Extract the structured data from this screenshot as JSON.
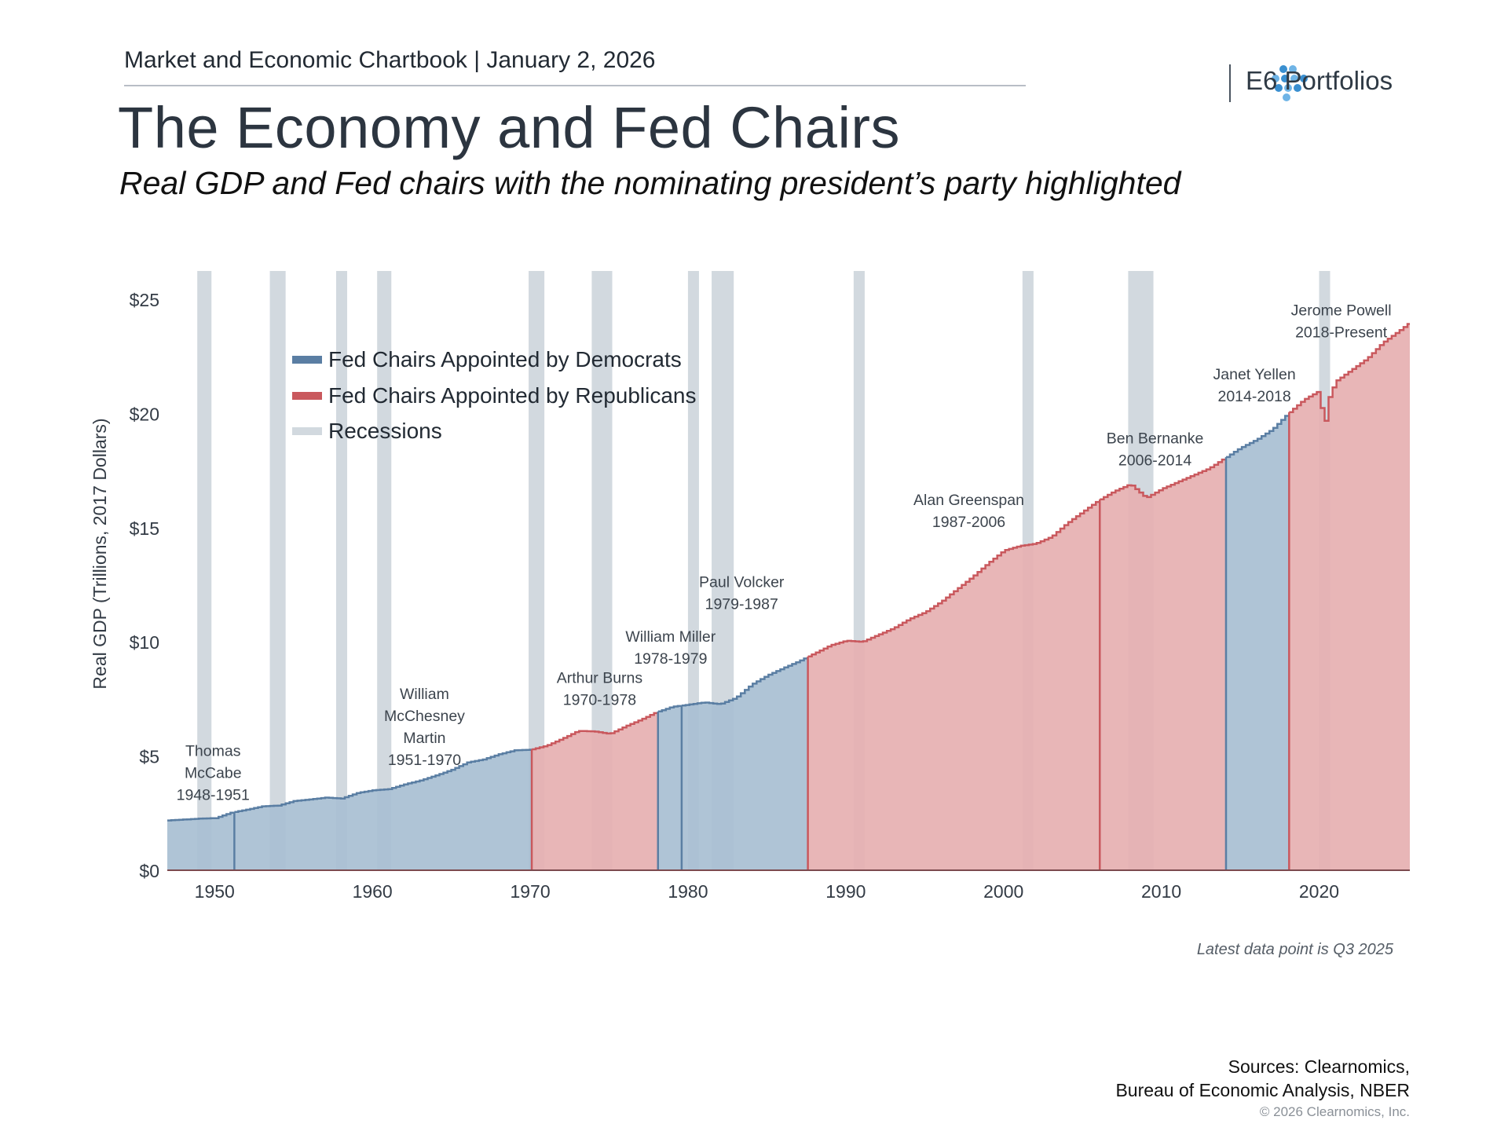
{
  "header": {
    "chartbook": "Market and Economic Chartbook | January 2, 2026",
    "brand": "E6 Portfolios",
    "title": "The Economy and Fed Chairs",
    "subtitle": "Real GDP and Fed chairs with the nominating president’s party highlighted"
  },
  "footer": {
    "note": "Latest data point is Q3 2025",
    "sources_line1": "Sources: Clearnomics,",
    "sources_line2": "Bureau of Economic Analysis, NBER",
    "copyright": "© 2026 Clearnomics, Inc."
  },
  "colors": {
    "democrat_fill": "#a8bfd3",
    "democrat_line": "#5a7ea3",
    "republican_fill": "#e6b0b1",
    "republican_line": "#c9585d",
    "recession": "#d2d9df",
    "axis_text": "#333b45"
  },
  "chart_data": {
    "type": "area",
    "ylabel": "Real GDP (Trillions, 2017 Dollars)",
    "ylim": [
      0,
      26
    ],
    "xlim": [
      1947,
      2025.75
    ],
    "y_ticks": [
      {
        "v": 0,
        "label": "$0"
      },
      {
        "v": 5,
        "label": "$5"
      },
      {
        "v": 10,
        "label": "$10"
      },
      {
        "v": 15,
        "label": "$15"
      },
      {
        "v": 20,
        "label": "$20"
      },
      {
        "v": 25,
        "label": "$25"
      }
    ],
    "x_ticks": [
      {
        "v": 1950,
        "label": "1950"
      },
      {
        "v": 1960,
        "label": "1960"
      },
      {
        "v": 1970,
        "label": "1970"
      },
      {
        "v": 1980,
        "label": "1980"
      },
      {
        "v": 1990,
        "label": "1990"
      },
      {
        "v": 2000,
        "label": "2000"
      },
      {
        "v": 2010,
        "label": "2010"
      },
      {
        "v": 2020,
        "label": "2020"
      }
    ],
    "legend": {
      "placement": "top-left",
      "entries": [
        {
          "label": "Fed Chairs Appointed by Democrats",
          "color": "#5a7ea3"
        },
        {
          "label": "Fed Chairs Appointed by Republicans",
          "color": "#c9585d"
        },
        {
          "label": "Recessions",
          "color": "#d2d9df"
        }
      ]
    },
    "gdp": [
      [
        1947,
        2.18
      ],
      [
        1948,
        2.22
      ],
      [
        1949,
        2.26
      ],
      [
        1950,
        2.28
      ],
      [
        1951,
        2.52
      ],
      [
        1952,
        2.65
      ],
      [
        1953,
        2.8
      ],
      [
        1954,
        2.83
      ],
      [
        1955,
        3.03
      ],
      [
        1956,
        3.1
      ],
      [
        1957,
        3.18
      ],
      [
        1958,
        3.14
      ],
      [
        1959,
        3.38
      ],
      [
        1960,
        3.5
      ],
      [
        1961,
        3.55
      ],
      [
        1962,
        3.76
      ],
      [
        1963,
        3.93
      ],
      [
        1964,
        4.15
      ],
      [
        1965,
        4.4
      ],
      [
        1966,
        4.72
      ],
      [
        1967,
        4.85
      ],
      [
        1968,
        5.08
      ],
      [
        1969,
        5.25
      ],
      [
        1970,
        5.28
      ],
      [
        1971,
        5.45
      ],
      [
        1972,
        5.76
      ],
      [
        1973,
        6.1
      ],
      [
        1974,
        6.08
      ],
      [
        1975,
        5.97
      ],
      [
        1976,
        6.3
      ],
      [
        1977,
        6.6
      ],
      [
        1978,
        6.93
      ],
      [
        1979,
        7.16
      ],
      [
        1980,
        7.25
      ],
      [
        1981,
        7.35
      ],
      [
        1982,
        7.27
      ],
      [
        1983,
        7.55
      ],
      [
        1984,
        8.13
      ],
      [
        1985,
        8.53
      ],
      [
        1986,
        8.85
      ],
      [
        1987,
        9.15
      ],
      [
        1988,
        9.5
      ],
      [
        1989,
        9.85
      ],
      [
        1990,
        10.05
      ],
      [
        1991,
        10.0
      ],
      [
        1992,
        10.3
      ],
      [
        1993,
        10.6
      ],
      [
        1994,
        11.0
      ],
      [
        1995,
        11.3
      ],
      [
        1996,
        11.75
      ],
      [
        1997,
        12.3
      ],
      [
        1998,
        12.85
      ],
      [
        1999,
        13.45
      ],
      [
        2000,
        14.0
      ],
      [
        2001,
        14.2
      ],
      [
        2002,
        14.3
      ],
      [
        2003,
        14.6
      ],
      [
        2004,
        15.2
      ],
      [
        2005,
        15.7
      ],
      [
        2006,
        16.2
      ],
      [
        2007,
        16.6
      ],
      [
        2008,
        16.9
      ],
      [
        2009,
        16.3
      ],
      [
        2010,
        16.7
      ],
      [
        2011,
        17.0
      ],
      [
        2012,
        17.3
      ],
      [
        2013,
        17.6
      ],
      [
        2014,
        18.05
      ],
      [
        2015,
        18.5
      ],
      [
        2016,
        18.85
      ],
      [
        2017,
        19.3
      ],
      [
        2018,
        20.0
      ],
      [
        2019,
        20.6
      ],
      [
        2020,
        21.0
      ],
      [
        2020.25,
        19.1
      ],
      [
        2020.5,
        20.55
      ],
      [
        2021,
        21.4
      ],
      [
        2022,
        21.9
      ],
      [
        2023,
        22.4
      ],
      [
        2024,
        23.1
      ],
      [
        2025,
        23.6
      ],
      [
        2025.75,
        24.0
      ]
    ],
    "chairs": [
      {
        "name": "Thomas McCabe",
        "lines": [
          "Thomas",
          "McCabe",
          "1948-1951"
        ],
        "start": 1947,
        "end": 1951.25,
        "party": "D",
        "label_x": 1949.9,
        "label_y": 5.0
      },
      {
        "name": "William McChesney Martin",
        "lines": [
          "William",
          "McChesney",
          "Martin",
          "1951-1970"
        ],
        "start": 1951.25,
        "end": 1970.1,
        "party": "D",
        "label_x": 1963.3,
        "label_y": 7.5
      },
      {
        "name": "Arthur Burns",
        "lines": [
          "Arthur Burns",
          "1970-1978"
        ],
        "start": 1970.1,
        "end": 1978.1,
        "party": "R",
        "label_x": 1974.4,
        "label_y": 8.2
      },
      {
        "name": "William Miller",
        "lines": [
          "William Miller",
          "1978-1979"
        ],
        "start": 1978.1,
        "end": 1979.6,
        "party": "D",
        "label_x": 1978.9,
        "label_y": 10.0
      },
      {
        "name": "Paul Volcker",
        "lines": [
          "Paul Volcker",
          "1979-1987"
        ],
        "start": 1979.6,
        "end": 1987.6,
        "party": "D",
        "label_x": 1983.4,
        "label_y": 12.4
      },
      {
        "name": "Alan Greenspan",
        "lines": [
          "Alan Greenspan",
          "1987-2006"
        ],
        "start": 1987.6,
        "end": 2006.1,
        "party": "R",
        "label_x": 1997.8,
        "label_y": 16.0
      },
      {
        "name": "Ben Bernanke",
        "lines": [
          "Ben Bernanke",
          "2006-2014"
        ],
        "start": 2006.1,
        "end": 2014.1,
        "party": "R",
        "label_x": 2009.6,
        "label_y": 18.7
      },
      {
        "name": "Janet Yellen",
        "lines": [
          "Janet Yellen",
          "2014-2018"
        ],
        "start": 2014.1,
        "end": 2018.1,
        "party": "D",
        "label_x": 2015.9,
        "label_y": 21.5
      },
      {
        "name": "Jerome Powell",
        "lines": [
          "Jerome Powell",
          "2018-Present"
        ],
        "start": 2018.1,
        "end": 2025.75,
        "party": "R",
        "label_x": 2021.4,
        "label_y": 24.3
      }
    ],
    "recessions": [
      [
        1948.9,
        1949.8
      ],
      [
        1953.5,
        1954.5
      ],
      [
        1957.7,
        1958.4
      ],
      [
        1960.3,
        1961.2
      ],
      [
        1969.9,
        1970.9
      ],
      [
        1973.9,
        1975.2
      ],
      [
        1980.0,
        1980.6
      ],
      [
        1981.5,
        1982.9
      ],
      [
        1990.5,
        1991.2
      ],
      [
        2001.2,
        2001.9
      ],
      [
        2007.9,
        2009.5
      ],
      [
        2020.0,
        2020.4
      ]
    ]
  }
}
